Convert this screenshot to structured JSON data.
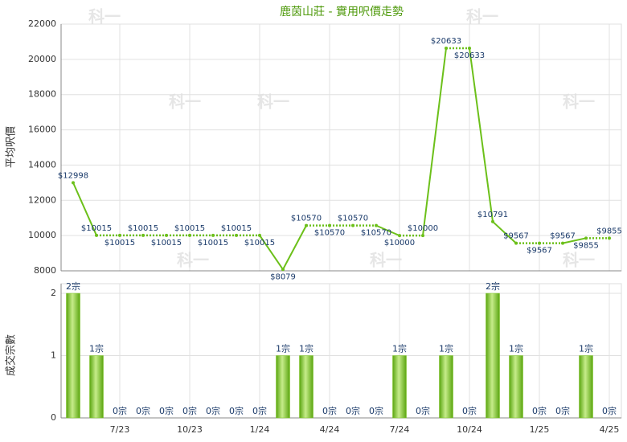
{
  "watermark": "科一",
  "chart_data": [
    {
      "type": "line",
      "title": "鹿茵山莊 - 實用呎價走勢",
      "y_label": "平均呎價",
      "values": [
        12998,
        10015,
        10015,
        10015,
        10015,
        10015,
        10015,
        10015,
        10015,
        8079,
        10570,
        10570,
        10570,
        10570,
        10000,
        10000,
        20633,
        20633,
        10791,
        9567,
        9567,
        9567,
        9855,
        9855
      ],
      "value_labels": [
        "$12998",
        "$10015",
        "$10015",
        "$10015",
        "$10015",
        "$10015",
        "$10015",
        "$10015",
        "$10015",
        "$8079",
        "$10570",
        "$10570",
        "$10570",
        "$10570",
        "$10000",
        "$10000",
        "$20633",
        "$20633",
        "$10791",
        "$9567",
        "$9567",
        "$9567",
        "$9855",
        "$9855"
      ],
      "color": "#6cc01a",
      "ylim": [
        8000,
        22000
      ],
      "yticks": [
        8000,
        10000,
        12000,
        14000,
        16000,
        18000,
        20000,
        22000
      ],
      "grid": true
    },
    {
      "type": "bar",
      "y_label": "成交宗數",
      "categories": [
        null,
        null,
        "7/23",
        null,
        null,
        "10/23",
        null,
        null,
        "1/24",
        null,
        null,
        "4/24",
        null,
        null,
        "7/24",
        null,
        null,
        "10/24",
        null,
        null,
        "1/25",
        null,
        null,
        "4/25"
      ],
      "values": [
        2,
        1,
        0,
        0,
        0,
        0,
        0,
        0,
        0,
        1,
        1,
        0,
        0,
        0,
        1,
        0,
        1,
        0,
        2,
        1,
        0,
        0,
        1,
        0
      ],
      "value_labels": [
        "2宗",
        "1宗",
        "0宗",
        "0宗",
        "0宗",
        "0宗",
        "0宗",
        "0宗",
        "0宗",
        "1宗",
        "1宗",
        "0宗",
        "0宗",
        "0宗",
        "1宗",
        "0宗",
        "1宗",
        "0宗",
        "2宗",
        "1宗",
        "0宗",
        "0宗",
        "1宗",
        "0宗"
      ],
      "color": "#7cc520",
      "ylim": [
        0,
        2
      ],
      "yticks": [
        0,
        1,
        2
      ],
      "grid": true
    }
  ]
}
